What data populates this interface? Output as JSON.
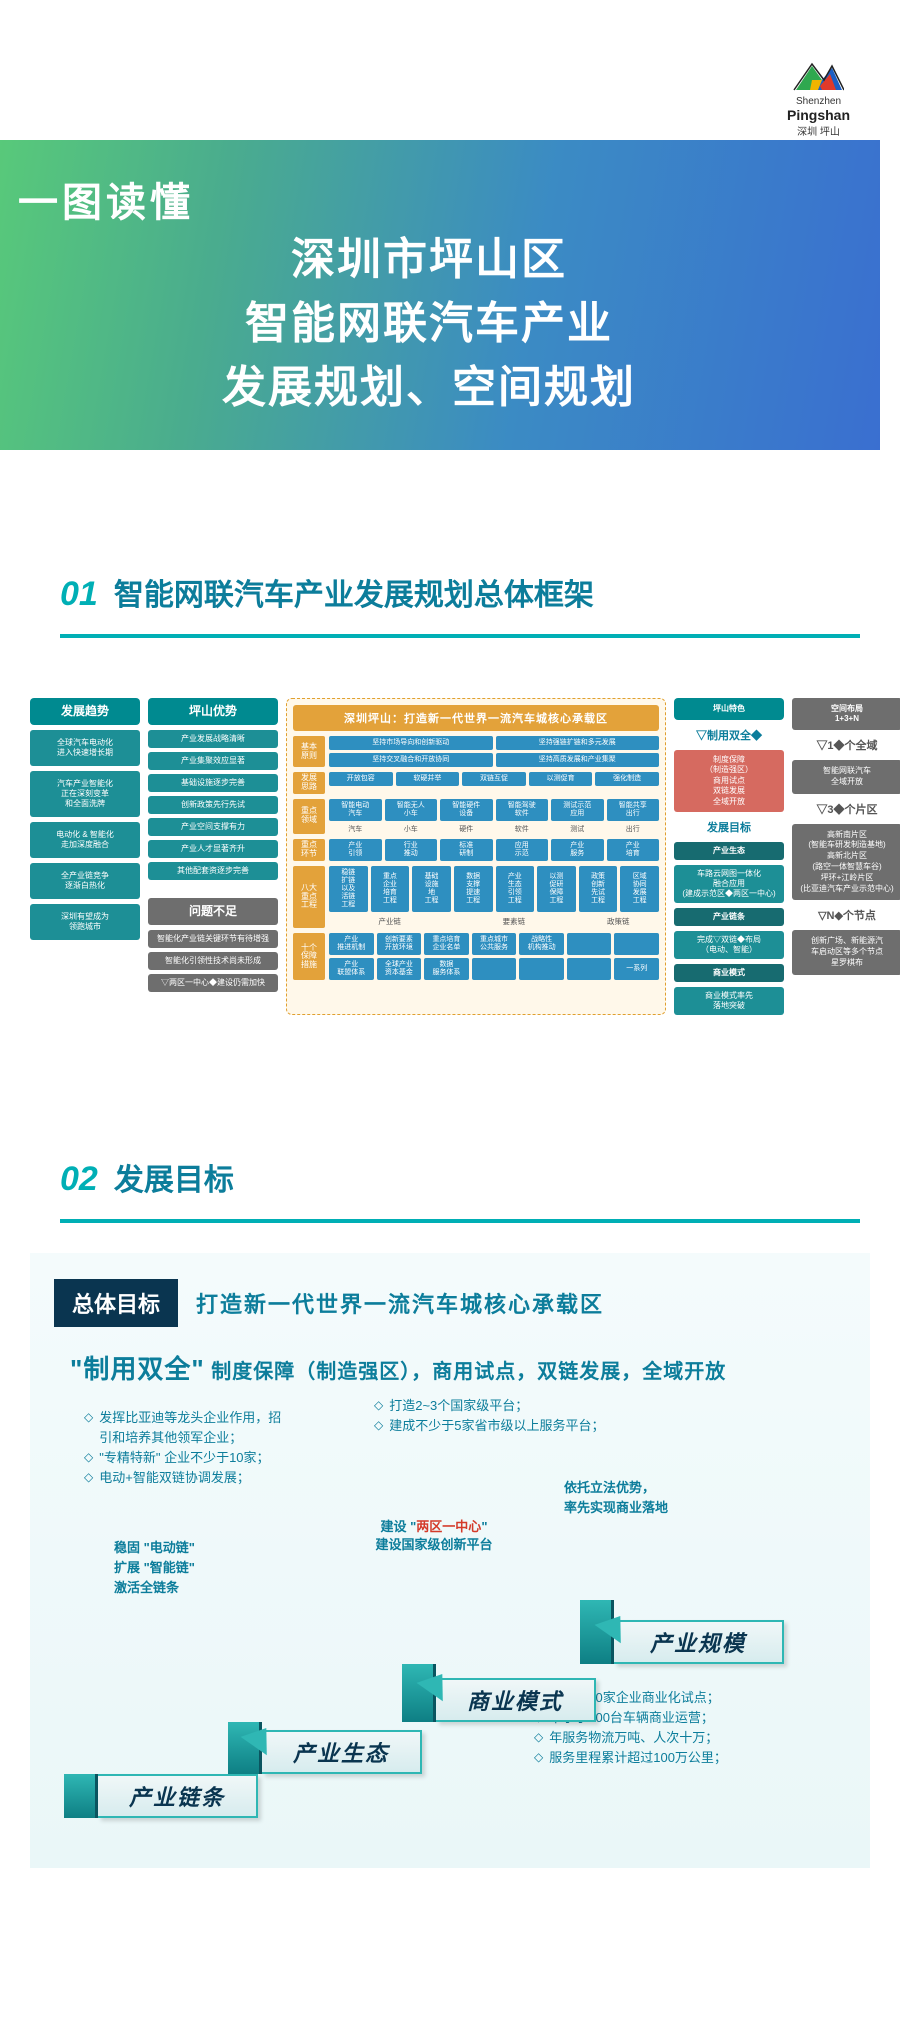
{
  "logo": {
    "line1": "Shenzhen",
    "line2": "Pingshan",
    "line3": "深圳 坪山"
  },
  "hero": {
    "line1": "一图读懂",
    "line2": "深圳市坪山区",
    "line3": "智能网联汽车产业",
    "line4": "发展规划、空间规划"
  },
  "section01": {
    "num": "01",
    "title": "智能网联汽车产业发展规划总体框架",
    "col1": {
      "head": "发展趋势",
      "items": [
        "全球汽车电动化\n进入快速增长期",
        "汽车产业智能化\n正在深刻变革\n和全面洗牌",
        "电动化 & 智能化\n走加深度融合",
        "全产业链竞争\n逐渐白热化",
        "深圳有望成为\n领跑城市"
      ]
    },
    "col2a": {
      "head": "坪山优势",
      "items": [
        "产业发展战略清晰",
        "产业集聚效应显著",
        "基础设施逐步完善",
        "创新政策先行先试",
        "产业空间支撑有力",
        "产业人才显著齐升",
        "其他配套资逐步完善"
      ]
    },
    "col2b": {
      "head": "问题不足",
      "items": [
        "智能化产业链关键环节有待增强",
        "智能化引领性技术尚未形成",
        "▽两区一中心◆建设仍需加快"
      ]
    },
    "center": {
      "title": "深圳坪山：打造新一代世界一流汽车城核心承载区",
      "rows": [
        {
          "label": "基本\n原则",
          "lines": [
            [
              "坚持市场导向和创新驱动",
              "坚持强链扩链和多元发展"
            ],
            [
              "坚持交叉融合和开放协同",
              "坚持高质发展和产业集聚"
            ]
          ]
        },
        {
          "label": "发展\n思路",
          "lines": [
            [
              "开放包容",
              "软硬并举",
              "双链互促",
              "以测促育",
              "强化制造"
            ]
          ]
        },
        {
          "label": "重点\n领域",
          "lines": [
            [
              "智能电动\n汽车",
              "智能无人\n小车",
              "智能硬件\n设备",
              "智能驾驶\n软件",
              "测试示范\n应用",
              "智能共享\n出行"
            ]
          ],
          "sub_row": [
            "汽车",
            "小车",
            "硬件",
            "软件",
            "测试",
            "出行"
          ]
        },
        {
          "label": "重点\n环节",
          "lines": [
            [
              "产业\n引领",
              "行业\n推动",
              "标准\n研制",
              "应用\n示范",
              "产业\n服务",
              "产业\n培育"
            ]
          ]
        },
        {
          "label": "八大\n重点\n工程",
          "lines": [
            [
              "稳链\n扩链\n以及\n活链\n工程",
              "重点\n企业\n培育\n工程",
              "基础\n设施\n地\n工程",
              "数据\n支撑\n提速\n工程",
              "产业\n生态\n引领\n工程",
              "以测\n促研\n保障\n工程",
              "政策\n创新\n先试\n工程",
              "区域\n协同\n发展\n工程"
            ]
          ],
          "span_row": [
            "产业链",
            "要素链",
            "政策链"
          ],
          "span_cols": [
            3,
            3,
            2
          ]
        },
        {
          "label": "十个\n保障\n措施",
          "lines": [
            [
              "产业\n推进机制",
              "创新要素\n开放环境",
              "重点培育\n企业名单",
              "重点城市\n公共服务",
              "战略性\n机构推动",
              "",
              ""
            ],
            [
              "产业\n联盟体系",
              "全球产业\n资本基金",
              "数据\n服务体系",
              "",
              "",
              "",
              "一系列"
            ]
          ]
        }
      ]
    },
    "col4": {
      "head": "坪山特色",
      "sub1": "▽制用双全◆",
      "pink": "制度保障\n（制造强区）\n商用试点\n双链发展\n全域开放",
      "sub2": "发展目标",
      "box1h": "产业生态",
      "box1": "车路云网图一体化\n融合应用\n(建成示范区◆两区一中心)",
      "box2h": "产业链条",
      "box2": "完成▽双链◆布局\n（电动、智能）",
      "box3h": "商业模式",
      "box3": "商业模式率先\n落地突破"
    },
    "col5": {
      "head": "空间布局\n1+3+N",
      "g1h": "▽1◆个全域",
      "g1": "智能网联汽车\n全域开放",
      "g2h": "▽3◆个片区",
      "g2": "高新南片区\n(智能车研发制造基地)\n高新北片区\n(路空一体智慧车谷)\n坪环+江岭片区\n(比亚迪汽车产业示范中心)",
      "g3h": "▽N◆个节点",
      "g3": "创新广场、新能源汽\n车启动区等多个节点\n星罗棋布"
    }
  },
  "section02": {
    "num": "02",
    "title": "发展目标",
    "goal_badge": "总体目标",
    "goal_text": "打造新一代世界一流汽车城核心承载区",
    "slogan_quote": "\"制用双全\"",
    "slogan_rest": "制度保障（制造强区），商用试点，双链发展，全域开放",
    "bullets": {
      "topleft": [
        "发挥比亚迪等龙头企业作用，招\n引和培养其他领军企业；",
        "\"专精特新\" 企业不少于10家；",
        "电动+智能双链协调发展；"
      ],
      "topcenter": [
        "打造2~3个国家级平台；",
        "建成不少于5家省市级以上服务平台；"
      ],
      "midleft": [
        "稳固 \"电动链\"",
        "扩展 \"智能链\"",
        "激活全链条"
      ],
      "center_title": "建设 \"两区一中心\"\n建设国家级创新平台",
      "center_red": "两区一中心",
      "topright": [
        "依托立法优势，",
        "率先实现商业落地"
      ],
      "bottomright": [
        "不少于10家企业商业化试点；",
        "不小于200台车辆商业运营；",
        "年服务物流万吨、人次十万；",
        "服务里程累计超过100万公里；"
      ]
    },
    "steps": [
      "产业链条",
      "产业生态",
      "商业模式",
      "产业规模"
    ]
  },
  "colors": {
    "teal": "#00afb5",
    "darkteal": "#0c7d9b",
    "orange": "#e3a23a",
    "blue": "#2e8fc0",
    "pink": "#d66a60",
    "grey": "#6e6e6e",
    "navy": "#0a3550",
    "red": "#d43a2a"
  }
}
